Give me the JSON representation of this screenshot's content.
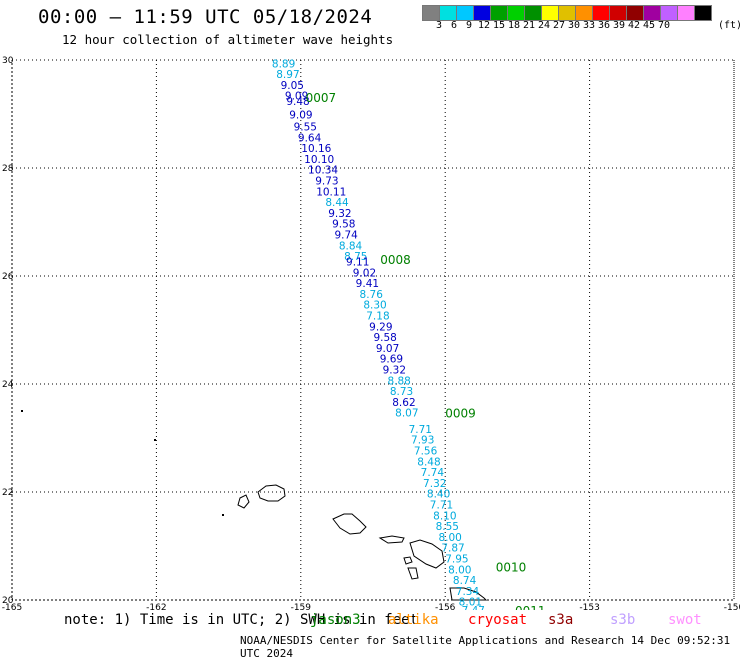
{
  "header": {
    "title": "00:00 – 11:59 UTC 05/18/2024",
    "subtitle": "12 hour collection of altimeter wave heights"
  },
  "legend": {
    "colors": [
      "#808080",
      "#00e0e0",
      "#00c8ff",
      "#0000e0",
      "#00a000",
      "#00d000",
      "#009000",
      "#ffff00",
      "#e0c000",
      "#ff9000",
      "#ff0000",
      "#d00000",
      "#900000",
      "#a000a0",
      "#c060ff",
      "#ff80ff",
      "#000000"
    ],
    "labels": [
      "3",
      "6",
      "9",
      "12",
      "15",
      "18",
      "21",
      "24",
      "27",
      "30",
      "33",
      "36",
      "39",
      "42",
      "45",
      "70"
    ],
    "unit": "(ft)"
  },
  "map": {
    "lon_range": [
      -165,
      -150
    ],
    "lat_range": [
      20,
      30
    ],
    "x_ticks": [
      "-165",
      "-162",
      "-159",
      "-156",
      "-153",
      "-150"
    ],
    "y_ticks": [
      "30",
      "28",
      "26",
      "24",
      "22",
      "20"
    ]
  },
  "passes": [
    {
      "label": "0007",
      "color": "#008000"
    },
    {
      "label": "0008",
      "color": "#008000"
    },
    {
      "label": "0009",
      "color": "#008000"
    },
    {
      "label": "0010",
      "color": "#008000"
    },
    {
      "label": "0011",
      "color": "#008000"
    }
  ],
  "readings": [
    {
      "lat": 29.92,
      "lon": -159.6,
      "value": "8.89",
      "color": "#00aadd"
    },
    {
      "lat": 29.72,
      "lon": -159.51,
      "value": "8.97",
      "color": "#00aadd"
    },
    {
      "lat": 29.52,
      "lon": -159.42,
      "value": "9.05",
      "color": "#0000c0"
    },
    {
      "lat": 29.32,
      "lon": -159.33,
      "value": "9.09",
      "color": "#0000c0"
    },
    {
      "lat": 29.22,
      "lon": -159.3,
      "value": "9.48",
      "color": "#0000c0"
    },
    {
      "lat": 28.97,
      "lon": -159.24,
      "value": "9.09",
      "color": "#0000c0"
    },
    {
      "lat": 28.75,
      "lon": -159.15,
      "value": "9.55",
      "color": "#0000c0"
    },
    {
      "lat": 28.55,
      "lon": -159.06,
      "value": "9.64",
      "color": "#0000c0"
    },
    {
      "lat": 28.35,
      "lon": -158.99,
      "value": "10.16",
      "color": "#0000c0"
    },
    {
      "lat": 28.15,
      "lon": -158.93,
      "value": "10.10",
      "color": "#0000c0"
    },
    {
      "lat": 27.95,
      "lon": -158.85,
      "value": "10.34",
      "color": "#0000c0"
    },
    {
      "lat": 27.75,
      "lon": -158.7,
      "value": "9.73",
      "color": "#0000c0"
    },
    {
      "lat": 27.55,
      "lon": -158.68,
      "value": "10.11",
      "color": "#0000c0"
    },
    {
      "lat": 27.35,
      "lon": -158.49,
      "value": "8.44",
      "color": "#00aadd"
    },
    {
      "lat": 27.15,
      "lon": -158.43,
      "value": "9.32",
      "color": "#0000c0"
    },
    {
      "lat": 26.95,
      "lon": -158.35,
      "value": "9.58",
      "color": "#0000c0"
    },
    {
      "lat": 26.75,
      "lon": -158.3,
      "value": "9.74",
      "color": "#0000c0"
    },
    {
      "lat": 26.55,
      "lon": -158.21,
      "value": "8.84",
      "color": "#00aadd"
    },
    {
      "lat": 26.35,
      "lon": -158.1,
      "value": "8.75",
      "color": "#00aadd"
    },
    {
      "lat": 26.25,
      "lon": -158.06,
      "value": "9.11",
      "color": "#0000c0"
    },
    {
      "lat": 26.05,
      "lon": -157.92,
      "value": "9.02",
      "color": "#0000c0"
    },
    {
      "lat": 25.85,
      "lon": -157.86,
      "value": "9.41",
      "color": "#0000c0"
    },
    {
      "lat": 25.65,
      "lon": -157.78,
      "value": "8.76",
      "color": "#00aadd"
    },
    {
      "lat": 25.45,
      "lon": -157.7,
      "value": "8.30",
      "color": "#00aadd"
    },
    {
      "lat": 25.25,
      "lon": -157.64,
      "value": "7.18",
      "color": "#00aadd"
    },
    {
      "lat": 25.05,
      "lon": -157.58,
      "value": "9.29",
      "color": "#0000c0"
    },
    {
      "lat": 24.85,
      "lon": -157.49,
      "value": "9.58",
      "color": "#0000c0"
    },
    {
      "lat": 24.65,
      "lon": -157.44,
      "value": "9.07",
      "color": "#0000c0"
    },
    {
      "lat": 24.45,
      "lon": -157.36,
      "value": "9.69",
      "color": "#0000c0"
    },
    {
      "lat": 24.25,
      "lon": -157.3,
      "value": "9.32",
      "color": "#0000c0"
    },
    {
      "lat": 24.05,
      "lon": -157.2,
      "value": "8.88",
      "color": "#00aadd"
    },
    {
      "lat": 23.85,
      "lon": -157.15,
      "value": "8.73",
      "color": "#00aadd"
    },
    {
      "lat": 23.65,
      "lon": -157.1,
      "value": "8.62",
      "color": "#0000c0"
    },
    {
      "lat": 23.45,
      "lon": -157.04,
      "value": "8.07",
      "color": "#00aadd"
    },
    {
      "lat": 23.15,
      "lon": -156.76,
      "value": "7.71",
      "color": "#00aadd"
    },
    {
      "lat": 22.95,
      "lon": -156.71,
      "value": "7.93",
      "color": "#00aadd"
    },
    {
      "lat": 22.75,
      "lon": -156.65,
      "value": "7.56",
      "color": "#00aadd"
    },
    {
      "lat": 22.55,
      "lon": -156.58,
      "value": "8.48",
      "color": "#00aadd"
    },
    {
      "lat": 22.35,
      "lon": -156.51,
      "value": "7.74",
      "color": "#00aadd"
    },
    {
      "lat": 22.15,
      "lon": -156.46,
      "value": "7.32",
      "color": "#00aadd"
    },
    {
      "lat": 21.95,
      "lon": -156.38,
      "value": "8.40",
      "color": "#00aadd"
    },
    {
      "lat": 21.75,
      "lon": -156.32,
      "value": "7.71",
      "color": "#00aadd"
    },
    {
      "lat": 21.55,
      "lon": -156.25,
      "value": "8.10",
      "color": "#00aadd"
    },
    {
      "lat": 21.35,
      "lon": -156.2,
      "value": "8.55",
      "color": "#00aadd"
    },
    {
      "lat": 21.15,
      "lon": -156.14,
      "value": "8.00",
      "color": "#00aadd"
    },
    {
      "lat": 20.95,
      "lon": -156.08,
      "value": "7.87",
      "color": "#00aadd"
    },
    {
      "lat": 20.75,
      "lon": -156.0,
      "value": "7.95",
      "color": "#00aadd"
    },
    {
      "lat": 20.55,
      "lon": -155.94,
      "value": "8.00",
      "color": "#00aadd"
    },
    {
      "lat": 20.35,
      "lon": -155.84,
      "value": "8.74",
      "color": "#00aadd"
    },
    {
      "lat": 20.15,
      "lon": -155.78,
      "value": "7.34",
      "color": "#00aadd"
    },
    {
      "lat": 19.95,
      "lon": -155.72,
      "value": "8.01",
      "color": "#00aadd"
    },
    {
      "lat": 19.8,
      "lon": -155.66,
      "value": "7.47",
      "color": "#00aadd"
    }
  ],
  "pass_positions": [
    {
      "lat": 29.3,
      "lon": -158.9
    },
    {
      "lat": 26.3,
      "lon": -157.35
    },
    {
      "lat": 23.45,
      "lon": -156.0
    },
    {
      "lat": 20.6,
      "lon": -154.95
    },
    {
      "lat": 19.8,
      "lon": -154.55
    }
  ],
  "footer": {
    "note": "note: 1) Time is in UTC; 2) SWH is in feet",
    "satellites": [
      {
        "name": "jason3",
        "color": "#008000"
      },
      {
        "name": "altika",
        "color": "#ff9000"
      },
      {
        "name": "cryosat",
        "color": "#ff0000"
      },
      {
        "name": "s3a",
        "color": "#900000"
      },
      {
        "name": "s3b",
        "color": "#c0a0ff"
      },
      {
        "name": "swot",
        "color": "#ff90ff"
      }
    ],
    "credit": "NOAA/NESDIS Center for Satellite Applications and Research   14 Dec 09:52:31 UTC 2024"
  }
}
